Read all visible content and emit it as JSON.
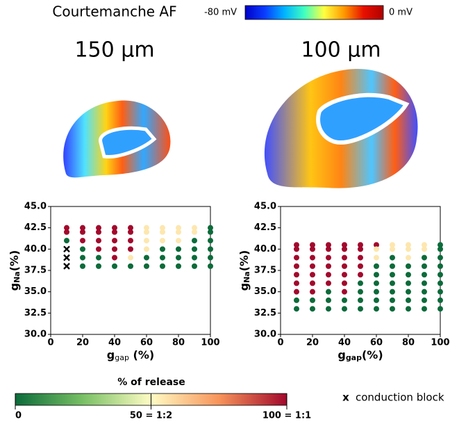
{
  "header": {
    "title": "Courtemanche AF",
    "colorbar_min": "-80 mV",
    "colorbar_max": "0 mV",
    "colorbar_colors": [
      "#0000c8",
      "#0a3cff",
      "#00b4ff",
      "#40ffc0",
      "#ffff40",
      "#ff9a00",
      "#e81000",
      "#b00000"
    ]
  },
  "panels": [
    "150 µm",
    "100 µm"
  ],
  "chart_data": [
    {
      "type": "scatter",
      "xlabel": {
        "main": "g",
        "sub": "gap",
        "rest": " (%)"
      },
      "ylabel": {
        "main": "g",
        "sub": "Na",
        "rest": "(%)"
      },
      "xlim": [
        0,
        100
      ],
      "xticks": [
        0,
        20,
        40,
        60,
        80,
        100
      ],
      "ylim": [
        30,
        45
      ],
      "yticks": [
        {
          "value": 30,
          "label": "30.0"
        },
        {
          "value": 32.5,
          "label": "32.5"
        },
        {
          "value": 35,
          "label": "35.0"
        },
        {
          "value": 37.5,
          "label": "37.5"
        },
        {
          "value": 40,
          "label": "40.0"
        },
        {
          "value": 42.5,
          "label": "42.5"
        },
        {
          "value": 45,
          "label": "45.0"
        }
      ],
      "x": [
        10,
        10,
        10,
        20,
        20,
        20,
        20,
        20,
        20,
        30,
        30,
        30,
        30,
        30,
        30,
        40,
        40,
        40,
        40,
        40,
        40,
        50,
        50,
        50,
        50,
        50,
        50,
        60,
        60,
        60,
        60,
        60,
        60,
        70,
        70,
        70,
        70,
        70,
        70,
        80,
        80,
        80,
        80,
        80,
        80,
        90,
        90,
        90,
        90,
        90,
        90,
        100,
        100,
        100,
        100,
        100,
        100
      ],
      "y": [
        42.5,
        42,
        41,
        42.5,
        42,
        41,
        40,
        39,
        38,
        42.5,
        42,
        41,
        40,
        39,
        38,
        42.5,
        42,
        41,
        40,
        39,
        38,
        42.5,
        42,
        41,
        40,
        39,
        38,
        42.5,
        42,
        41,
        40,
        39,
        38,
        42.5,
        42,
        41,
        40,
        39,
        38,
        42.5,
        42,
        41,
        40,
        39,
        38,
        42.5,
        42,
        41,
        40,
        39,
        38,
        42.5,
        42,
        41,
        40,
        39,
        38
      ],
      "values": [
        100,
        100,
        0,
        100,
        100,
        100,
        0,
        0,
        0,
        100,
        100,
        100,
        100,
        0,
        0,
        100,
        100,
        100,
        100,
        100,
        0,
        100,
        100,
        100,
        100,
        55,
        0,
        55,
        55,
        55,
        55,
        0,
        0,
        55,
        55,
        55,
        0,
        0,
        0,
        55,
        55,
        55,
        0,
        0,
        0,
        55,
        55,
        0,
        0,
        0,
        0,
        0,
        0,
        0,
        0,
        0,
        0
      ],
      "block_x": [
        10,
        10,
        10
      ],
      "block_y": [
        40,
        39,
        38
      ]
    },
    {
      "type": "scatter",
      "xlabel": {
        "main": "g",
        "sub": "gap",
        "rest": "(%)"
      },
      "ylabel": {
        "main": "g",
        "sub": "Na",
        "rest": "(%)"
      },
      "xlim": [
        0,
        100
      ],
      "xticks": [
        0,
        20,
        40,
        60,
        80,
        100
      ],
      "ylim": [
        30,
        45
      ],
      "yticks": [
        {
          "value": 30,
          "label": "30.0"
        },
        {
          "value": 32.5,
          "label": "32.5"
        },
        {
          "value": 35,
          "label": "35.0"
        },
        {
          "value": 37.5,
          "label": "37.5"
        },
        {
          "value": 40,
          "label": "40.0"
        },
        {
          "value": 42.5,
          "label": "42.5"
        },
        {
          "value": 45,
          "label": "45.0"
        }
      ],
      "x": [
        10,
        10,
        10,
        10,
        10,
        10,
        10,
        10,
        10,
        20,
        20,
        20,
        20,
        20,
        20,
        20,
        20,
        20,
        30,
        30,
        30,
        30,
        30,
        30,
        30,
        30,
        30,
        40,
        40,
        40,
        40,
        40,
        40,
        40,
        40,
        40,
        50,
        50,
        50,
        50,
        50,
        50,
        50,
        50,
        50,
        60,
        60,
        60,
        60,
        60,
        60,
        60,
        60,
        60,
        70,
        70,
        70,
        70,
        70,
        70,
        70,
        70,
        70,
        80,
        80,
        80,
        80,
        80,
        80,
        80,
        80,
        80,
        90,
        90,
        90,
        90,
        90,
        90,
        90,
        90,
        90,
        100,
        100,
        100,
        100,
        100,
        100,
        100,
        100,
        100
      ],
      "y": [
        40.5,
        40,
        39,
        38,
        37,
        36,
        35,
        34,
        33,
        40.5,
        40,
        39,
        38,
        37,
        36,
        35,
        34,
        33,
        40.5,
        40,
        39,
        38,
        37,
        36,
        35,
        34,
        33,
        40.5,
        40,
        39,
        38,
        37,
        36,
        35,
        34,
        33,
        40.5,
        40,
        39,
        38,
        37,
        36,
        35,
        34,
        33,
        40.5,
        40,
        39,
        38,
        37,
        36,
        35,
        34,
        33,
        40.5,
        40,
        39,
        38,
        37,
        36,
        35,
        34,
        33,
        40.5,
        40,
        39,
        38,
        37,
        36,
        35,
        34,
        33,
        40.5,
        40,
        39,
        38,
        37,
        36,
        35,
        34,
        33,
        40.5,
        40,
        39,
        38,
        37,
        36,
        35,
        34,
        33
      ],
      "values": [
        100,
        100,
        100,
        100,
        100,
        100,
        100,
        0,
        0,
        100,
        100,
        100,
        100,
        100,
        100,
        100,
        0,
        0,
        100,
        100,
        100,
        100,
        100,
        100,
        0,
        0,
        0,
        100,
        100,
        100,
        100,
        100,
        100,
        100,
        0,
        0,
        100,
        100,
        100,
        100,
        100,
        0,
        0,
        0,
        0,
        100,
        55,
        55,
        0,
        0,
        0,
        0,
        0,
        0,
        55,
        55,
        0,
        0,
        0,
        0,
        0,
        0,
        0,
        55,
        55,
        55,
        0,
        0,
        0,
        0,
        0,
        0,
        55,
        55,
        0,
        0,
        0,
        0,
        0,
        0,
        0,
        0,
        0,
        0,
        0,
        0,
        0,
        0,
        0,
        0
      ]
    }
  ],
  "release_colorbar": {
    "title": "% of release",
    "xlim": [
      0,
      100
    ],
    "ticks": [
      0,
      {
        "value": 50,
        "label": "50 = 1:2"
      },
      {
        "value": 100,
        "label": "100 = 1:1"
      }
    ],
    "colors": [
      "#0b6b3a",
      "#79c065",
      "#fffcc4",
      "#f7945a",
      "#a2082c"
    ]
  },
  "legend": {
    "marker": "x",
    "label": "conduction block"
  }
}
